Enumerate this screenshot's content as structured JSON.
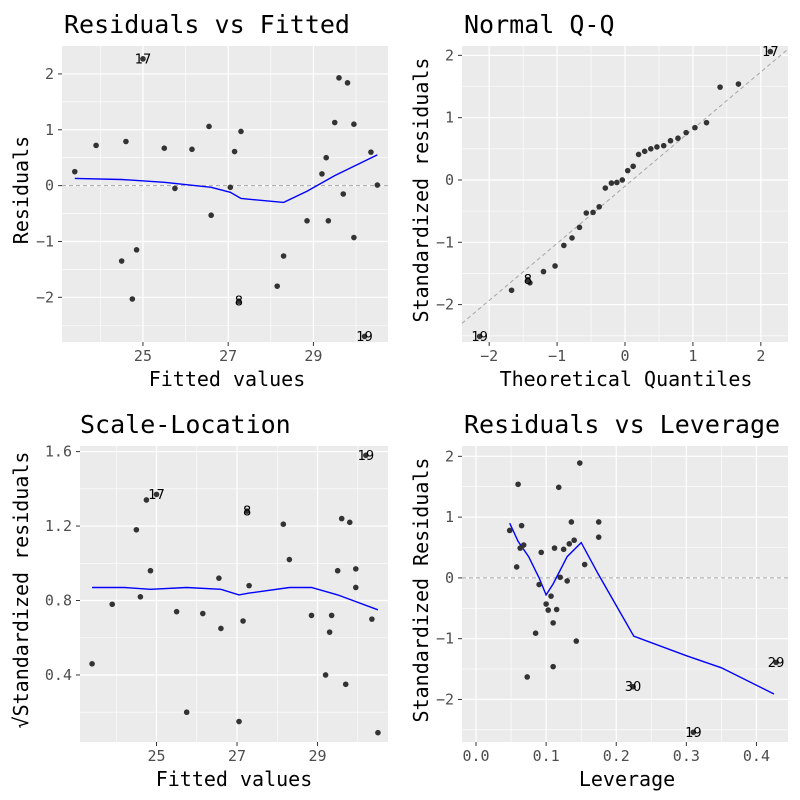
{
  "chart_data": [
    {
      "type": "scatter",
      "title": "Residuals vs Fitted",
      "xlabel": "Fitted values",
      "ylabel": "Residuals",
      "xlim": [
        23.1,
        30.75
      ],
      "ylim": [
        -2.8,
        2.5
      ],
      "xticks": [
        25,
        27,
        29
      ],
      "xticklabels": [
        "25",
        "27",
        "29"
      ],
      "yticks": [
        -2,
        -1,
        0,
        1,
        2
      ],
      "yticklabels": [
        "−2",
        "−1",
        "0",
        "1",
        "2"
      ],
      "grid": true,
      "points": [
        {
          "x": 23.4,
          "y": 0.25
        },
        {
          "x": 23.9,
          "y": 0.72
        },
        {
          "x": 24.5,
          "y": -1.35
        },
        {
          "x": 24.6,
          "y": 0.79
        },
        {
          "x": 24.75,
          "y": -2.03
        },
        {
          "x": 24.85,
          "y": -1.15
        },
        {
          "x": 25.5,
          "y": 0.67
        },
        {
          "x": 25.75,
          "y": -0.05
        },
        {
          "x": 26.15,
          "y": 0.65
        },
        {
          "x": 26.55,
          "y": 1.06
        },
        {
          "x": 26.6,
          "y": -0.53
        },
        {
          "x": 27.05,
          "y": -0.03
        },
        {
          "x": 27.15,
          "y": 0.61
        },
        {
          "x": 27.3,
          "y": 0.97
        },
        {
          "x": 28.15,
          "y": -1.8
        },
        {
          "x": 28.3,
          "y": -1.26
        },
        {
          "x": 28.85,
          "y": -0.63
        },
        {
          "x": 29.2,
          "y": 0.21
        },
        {
          "x": 29.3,
          "y": 0.5
        },
        {
          "x": 29.35,
          "y": -0.63
        },
        {
          "x": 29.5,
          "y": 1.13
        },
        {
          "x": 29.6,
          "y": 1.93
        },
        {
          "x": 29.7,
          "y": -0.15
        },
        {
          "x": 29.8,
          "y": 1.84
        },
        {
          "x": 29.95,
          "y": 1.1
        },
        {
          "x": 29.95,
          "y": -0.93
        },
        {
          "x": 30.35,
          "y": 0.6
        },
        {
          "x": 30.5,
          "y": 0.01
        }
      ],
      "labels": [
        {
          "text": "17",
          "x": 25.0,
          "y": 2.27
        },
        {
          "text": "8",
          "x": 27.25,
          "y": -2.07
        },
        {
          "text": "19",
          "x": 30.2,
          "y": -2.7
        }
      ],
      "smooth": {
        "x": [
          23.4,
          24.5,
          25.5,
          26.6,
          27.05,
          27.3,
          28.3,
          28.85,
          29.5,
          30.5
        ],
        "y": [
          0.13,
          0.11,
          0.06,
          -0.03,
          -0.12,
          -0.23,
          -0.3,
          -0.1,
          0.18,
          0.55
        ]
      },
      "refline": {
        "y": 0,
        "style": "dashed"
      }
    },
    {
      "type": "scatter",
      "title": "Normal Q-Q",
      "xlabel": "Theoretical Quantiles",
      "ylabel": "Standardized residuals",
      "xlim": [
        -2.4,
        2.4
      ],
      "ylim": [
        -2.6,
        2.15
      ],
      "xticks": [
        -2,
        -1,
        0,
        1,
        2
      ],
      "xticklabels": [
        "−2",
        "−1",
        "0",
        "1",
        "2"
      ],
      "yticks": [
        -2,
        -1,
        0,
        1,
        2
      ],
      "yticklabels": [
        "−2",
        "−1",
        "0",
        "1",
        "2"
      ],
      "grid": true,
      "points": [
        {
          "x": -1.67,
          "y": -1.77
        },
        {
          "x": -1.4,
          "y": -1.65
        },
        {
          "x": -1.2,
          "y": -1.47
        },
        {
          "x": -1.03,
          "y": -1.38
        },
        {
          "x": -0.9,
          "y": -1.05
        },
        {
          "x": -0.78,
          "y": -0.93
        },
        {
          "x": -0.67,
          "y": -0.76
        },
        {
          "x": -0.57,
          "y": -0.53
        },
        {
          "x": -0.47,
          "y": -0.52
        },
        {
          "x": -0.38,
          "y": -0.43
        },
        {
          "x": -0.29,
          "y": -0.13
        },
        {
          "x": -0.2,
          "y": -0.05
        },
        {
          "x": -0.12,
          "y": -0.04
        },
        {
          "x": -0.04,
          "y": 0.0
        },
        {
          "x": 0.04,
          "y": 0.15
        },
        {
          "x": 0.12,
          "y": 0.22
        },
        {
          "x": 0.2,
          "y": 0.41
        },
        {
          "x": 0.29,
          "y": 0.46
        },
        {
          "x": 0.38,
          "y": 0.5
        },
        {
          "x": 0.47,
          "y": 0.53
        },
        {
          "x": 0.57,
          "y": 0.55
        },
        {
          "x": 0.67,
          "y": 0.63
        },
        {
          "x": 0.78,
          "y": 0.67
        },
        {
          "x": 0.9,
          "y": 0.76
        },
        {
          "x": 1.03,
          "y": 0.84
        },
        {
          "x": 1.2,
          "y": 0.92
        },
        {
          "x": 1.4,
          "y": 1.49
        },
        {
          "x": 1.67,
          "y": 1.54
        }
      ],
      "labels": [
        {
          "text": "17",
          "x": 2.14,
          "y": 2.06
        },
        {
          "text": "8",
          "x": -1.43,
          "y": -1.6
        },
        {
          "text": "19",
          "x": -2.14,
          "y": -2.51
        }
      ],
      "refline": {
        "x": [
          -2.4,
          2.4
        ],
        "y": [
          -2.3,
          2.1
        ],
        "style": "dashed"
      }
    },
    {
      "type": "scatter",
      "title": "Scale-Location",
      "xlabel": "Fitted values",
      "ylabel": "√Standardized residuals",
      "xlim": [
        23.1,
        30.75
      ],
      "ylim": [
        0.04,
        1.63
      ],
      "xticks": [
        25,
        27,
        29
      ],
      "xticklabels": [
        "25",
        "27",
        "29"
      ],
      "yticks": [
        0.4,
        0.8,
        1.2,
        1.6
      ],
      "yticklabels": [
        "0.4",
        "0.8",
        "1.2",
        "1.6"
      ],
      "grid": true,
      "points": [
        {
          "x": 23.4,
          "y": 0.46
        },
        {
          "x": 23.9,
          "y": 0.78
        },
        {
          "x": 24.5,
          "y": 1.18
        },
        {
          "x": 24.6,
          "y": 0.82
        },
        {
          "x": 24.75,
          "y": 1.34
        },
        {
          "x": 24.85,
          "y": 0.96
        },
        {
          "x": 25.5,
          "y": 0.74
        },
        {
          "x": 25.75,
          "y": 0.2
        },
        {
          "x": 26.15,
          "y": 0.73
        },
        {
          "x": 26.55,
          "y": 0.92
        },
        {
          "x": 26.6,
          "y": 0.65
        },
        {
          "x": 27.05,
          "y": 0.15
        },
        {
          "x": 27.15,
          "y": 0.69
        },
        {
          "x": 27.3,
          "y": 0.88
        },
        {
          "x": 28.15,
          "y": 1.21
        },
        {
          "x": 28.3,
          "y": 1.02
        },
        {
          "x": 28.85,
          "y": 0.72
        },
        {
          "x": 29.2,
          "y": 0.4
        },
        {
          "x": 29.3,
          "y": 0.63
        },
        {
          "x": 29.35,
          "y": 0.72
        },
        {
          "x": 29.5,
          "y": 0.96
        },
        {
          "x": 29.6,
          "y": 1.24
        },
        {
          "x": 29.7,
          "y": 0.35
        },
        {
          "x": 29.8,
          "y": 1.22
        },
        {
          "x": 29.95,
          "y": 0.97
        },
        {
          "x": 29.95,
          "y": 0.87
        },
        {
          "x": 30.35,
          "y": 0.7
        },
        {
          "x": 30.5,
          "y": 0.09
        }
      ],
      "labels": [
        {
          "text": "17",
          "x": 25.0,
          "y": 1.37
        },
        {
          "text": "8",
          "x": 27.25,
          "y": 1.28
        },
        {
          "text": "19",
          "x": 30.2,
          "y": 1.58
        }
      ],
      "smooth": {
        "x": [
          23.4,
          24.2,
          24.85,
          25.75,
          26.6,
          27.05,
          27.3,
          28.3,
          28.85,
          29.5,
          30.5
        ],
        "y": [
          0.87,
          0.87,
          0.86,
          0.87,
          0.86,
          0.83,
          0.84,
          0.87,
          0.87,
          0.83,
          0.75
        ]
      }
    },
    {
      "type": "scatter",
      "title": "Residuals vs Leverage",
      "xlabel": "Leverage",
      "ylabel": "Standardized Residuals",
      "xlim": [
        -0.02,
        0.445
      ],
      "ylim": [
        -2.7,
        2.17
      ],
      "xticks": [
        0.0,
        0.1,
        0.2,
        0.3,
        0.4
      ],
      "xticklabels": [
        "0.0",
        "0.1",
        "0.2",
        "0.3",
        "0.4"
      ],
      "yticks": [
        -2,
        -1,
        0,
        1,
        2
      ],
      "yticklabels": [
        "−2",
        "−1",
        "0",
        "1",
        "2"
      ],
      "grid": true,
      "points": [
        {
          "x": 0.048,
          "y": 0.78
        },
        {
          "x": 0.058,
          "y": 0.18
        },
        {
          "x": 0.06,
          "y": 1.54
        },
        {
          "x": 0.063,
          "y": 0.49
        },
        {
          "x": 0.065,
          "y": 0.86
        },
        {
          "x": 0.068,
          "y": 0.54
        },
        {
          "x": 0.073,
          "y": -1.63
        },
        {
          "x": 0.085,
          "y": -0.91
        },
        {
          "x": 0.09,
          "y": -0.11
        },
        {
          "x": 0.093,
          "y": 0.42
        },
        {
          "x": 0.1,
          "y": -0.43
        },
        {
          "x": 0.103,
          "y": -0.53
        },
        {
          "x": 0.107,
          "y": -0.3
        },
        {
          "x": 0.11,
          "y": -1.46
        },
        {
          "x": 0.11,
          "y": -0.74
        },
        {
          "x": 0.112,
          "y": 0.49
        },
        {
          "x": 0.115,
          "y": -0.52
        },
        {
          "x": 0.118,
          "y": 1.49
        },
        {
          "x": 0.12,
          "y": 0.01
        },
        {
          "x": 0.125,
          "y": 0.47
        },
        {
          "x": 0.13,
          "y": -0.05
        },
        {
          "x": 0.133,
          "y": 0.56
        },
        {
          "x": 0.136,
          "y": 0.92
        },
        {
          "x": 0.14,
          "y": 0.62
        },
        {
          "x": 0.143,
          "y": -1.04
        },
        {
          "x": 0.148,
          "y": 1.89
        },
        {
          "x": 0.155,
          "y": 0.22
        },
        {
          "x": 0.175,
          "y": 0.92
        },
        {
          "x": 0.175,
          "y": 0.67
        }
      ],
      "labels": [
        {
          "text": "30",
          "x": 0.224,
          "y": -1.79
        },
        {
          "text": "19",
          "x": 0.31,
          "y": -2.54
        },
        {
          "text": "29",
          "x": 0.428,
          "y": -1.39
        }
      ],
      "smooth": {
        "x": [
          0.048,
          0.06,
          0.075,
          0.09,
          0.1,
          0.11,
          0.13,
          0.15,
          0.175,
          0.225,
          0.3,
          0.35,
          0.425
        ],
        "y": [
          0.9,
          0.6,
          0.35,
          0.0,
          -0.28,
          -0.1,
          0.35,
          0.58,
          0.05,
          -0.96,
          -1.28,
          -1.48,
          -1.91
        ]
      },
      "refline": {
        "y": 0,
        "style": "dashed"
      }
    }
  ]
}
